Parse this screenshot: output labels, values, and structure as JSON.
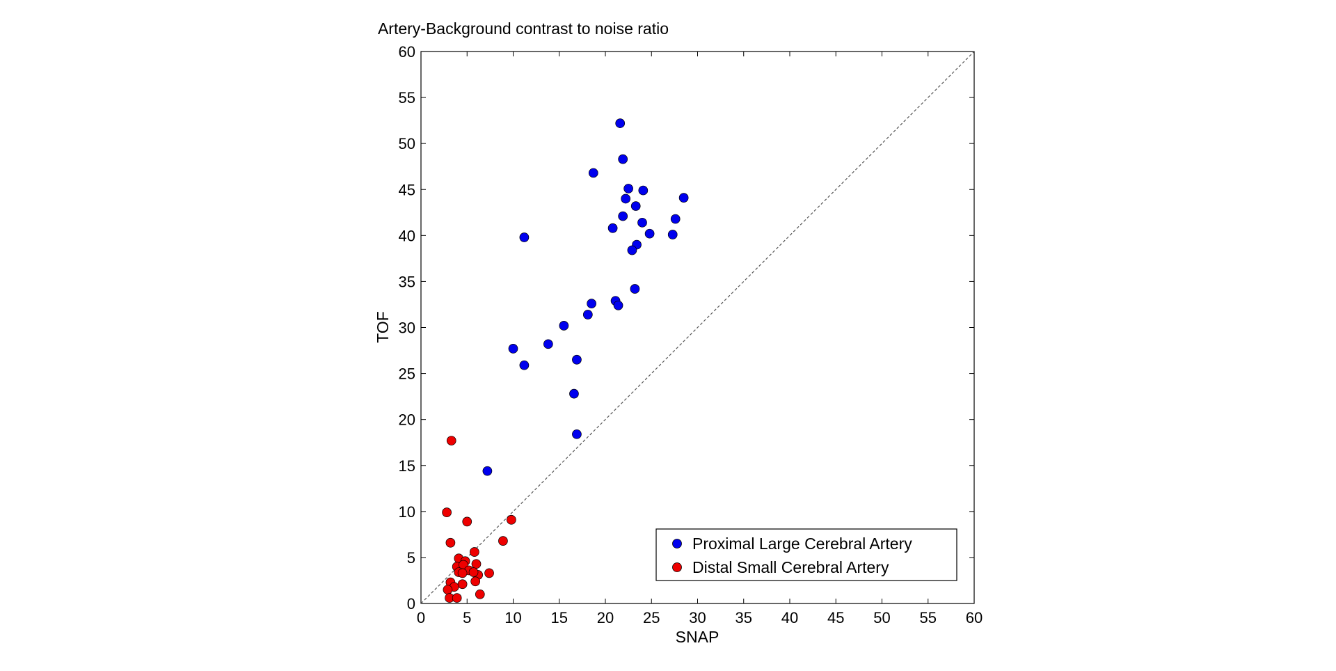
{
  "colors": {
    "proximal": "#0000ee",
    "distal": "#ee0000",
    "axis": "#000000",
    "diagonal": "#555555"
  },
  "chart_data": {
    "type": "scatter",
    "title": "Artery-Background contrast to noise ratio",
    "xlabel": "SNAP",
    "ylabel": "TOF",
    "xlim": [
      0,
      60
    ],
    "ylim": [
      0,
      60
    ],
    "xticks": [
      0,
      5,
      10,
      15,
      20,
      25,
      30,
      35,
      40,
      45,
      50,
      55,
      60
    ],
    "yticks": [
      0,
      5,
      10,
      15,
      20,
      25,
      30,
      35,
      40,
      45,
      50,
      55,
      60
    ],
    "reference_line": "y = x (dashed)",
    "legend_position": "bottom-right",
    "series": [
      {
        "name": "Proximal Large Cerebral Artery",
        "color": "#0000ee",
        "points": [
          [
            21.6,
            52.2
          ],
          [
            21.9,
            48.3
          ],
          [
            18.7,
            46.8
          ],
          [
            22.5,
            45.1
          ],
          [
            24.1,
            44.9
          ],
          [
            28.5,
            44.1
          ],
          [
            22.2,
            44.0
          ],
          [
            23.3,
            43.2
          ],
          [
            21.9,
            42.1
          ],
          [
            27.6,
            41.8
          ],
          [
            24.0,
            41.4
          ],
          [
            20.8,
            40.8
          ],
          [
            24.8,
            40.2
          ],
          [
            27.3,
            40.1
          ],
          [
            11.2,
            39.8
          ],
          [
            23.4,
            39.0
          ],
          [
            22.9,
            38.4
          ],
          [
            23.2,
            34.2
          ],
          [
            18.5,
            32.6
          ],
          [
            21.1,
            32.9
          ],
          [
            21.4,
            32.4
          ],
          [
            18.1,
            31.4
          ],
          [
            15.5,
            30.2
          ],
          [
            13.8,
            28.2
          ],
          [
            10.0,
            27.7
          ],
          [
            16.9,
            26.5
          ],
          [
            11.2,
            25.9
          ],
          [
            16.6,
            22.8
          ],
          [
            16.9,
            18.4
          ],
          [
            7.2,
            14.4
          ]
        ]
      },
      {
        "name": "Distal Small Cerebral Artery",
        "color": "#ee0000",
        "points": [
          [
            3.3,
            17.7
          ],
          [
            2.8,
            9.9
          ],
          [
            5.0,
            8.9
          ],
          [
            9.8,
            9.1
          ],
          [
            3.2,
            6.6
          ],
          [
            8.9,
            6.8
          ],
          [
            5.8,
            5.6
          ],
          [
            4.1,
            4.9
          ],
          [
            4.8,
            4.6
          ],
          [
            3.9,
            4.0
          ],
          [
            4.6,
            4.2
          ],
          [
            6.0,
            4.3
          ],
          [
            5.2,
            3.6
          ],
          [
            4.1,
            3.4
          ],
          [
            4.5,
            3.3
          ],
          [
            6.2,
            3.1
          ],
          [
            7.4,
            3.3
          ],
          [
            5.7,
            3.4
          ],
          [
            5.9,
            2.4
          ],
          [
            3.2,
            2.3
          ],
          [
            4.5,
            2.1
          ],
          [
            3.6,
            1.8
          ],
          [
            2.9,
            1.5
          ],
          [
            6.4,
            1.0
          ],
          [
            3.1,
            0.6
          ],
          [
            3.9,
            0.6
          ]
        ]
      }
    ]
  }
}
